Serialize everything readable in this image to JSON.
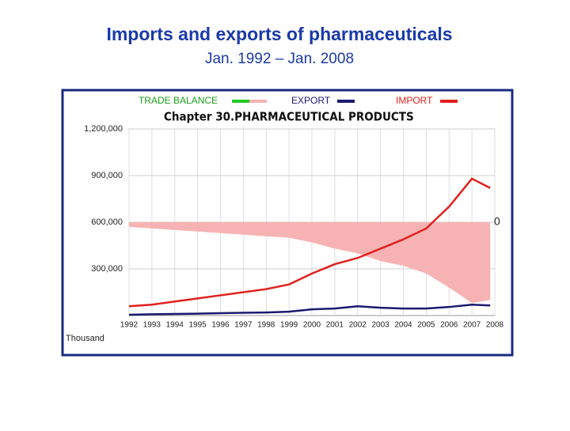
{
  "title": "Imports and exports of pharmaceuticals",
  "subtitle": "Jan. 1992 – Jan. 2008",
  "chart_data": {
    "type": "line",
    "title": "Chapter 30.PHARMACEUTICAL PRODUCTS",
    "y_unit_label": "Thousand",
    "x": [
      1992,
      1993,
      1994,
      1995,
      1996,
      1997,
      1998,
      1999,
      2000,
      2001,
      2002,
      2003,
      2004,
      2005,
      2006,
      2007,
      2007.8
    ],
    "series": [
      {
        "name": "TRADE BALANCE",
        "color": "#f7b3b3",
        "legend_color": "#22cc22",
        "axis": "y2",
        "style": "area",
        "values": [
          -30000,
          -40000,
          -50000,
          -60000,
          -70000,
          -80000,
          -90000,
          -100000,
          -130000,
          -170000,
          -200000,
          -250000,
          -280000,
          -330000,
          -420000,
          -520000,
          -500000
        ]
      },
      {
        "name": "EXPORT",
        "color": "#1a1a70",
        "values": [
          5000,
          8000,
          10000,
          12000,
          15000,
          18000,
          20000,
          25000,
          40000,
          45000,
          60000,
          50000,
          45000,
          45000,
          55000,
          70000,
          65000
        ]
      },
      {
        "name": "IMPORT",
        "color": "#e0201c",
        "values": [
          60000,
          70000,
          90000,
          110000,
          130000,
          150000,
          170000,
          200000,
          270000,
          330000,
          370000,
          430000,
          490000,
          560000,
          700000,
          880000,
          820000
        ]
      }
    ],
    "xlim": [
      1992,
      2008
    ],
    "xticks": [
      1992,
      1993,
      1994,
      1995,
      1996,
      1997,
      1998,
      1999,
      2000,
      2001,
      2002,
      2003,
      2004,
      2005,
      2006,
      2007,
      2008
    ],
    "ylim": [
      0,
      1200000
    ],
    "yticks": [
      {
        "value": 300000,
        "label": "300,000"
      },
      {
        "value": 600000,
        "label": "600,000"
      },
      {
        "value": 900000,
        "label": "900,000"
      },
      {
        "value": 1200000,
        "label": "1,200,000"
      }
    ],
    "y2lim": [
      -600000,
      600000
    ],
    "y2ticks": [
      0
    ],
    "grid": true
  }
}
